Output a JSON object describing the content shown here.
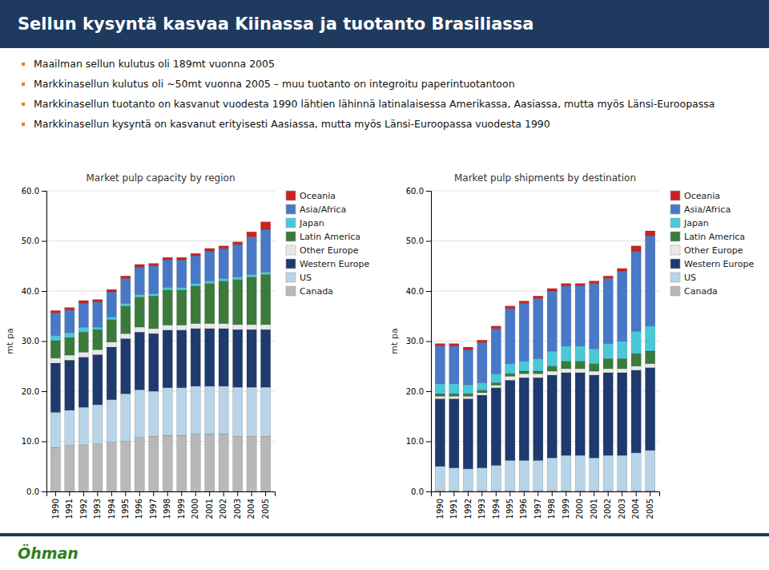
{
  "title": "Sellun kysyntä kasvaa Kiinassa ja tuotanto Brasiliassa",
  "bullets": [
    "Maailman sellun kulutus oli 189mt vuonna 2005",
    "Markkinasellun kulutus oli ~50mt vuonna 2005 – muu tuotanto on integroitu paperintuotantoon",
    "Markkinasellun tuotanto on kasvanut vuodesta 1990 lähtien lähinnä latinalaisessa Amerikassa, Aasiassa, mutta myös Länsi-Euroopassa",
    "Markkinasellun kysyntä on kasvanut erityisesti Aasiassa, mutta myös Länsi-Euroopassa vuodesta 1990"
  ],
  "footer": "Öhman",
  "chart_data": [
    {
      "type": "bar",
      "stacked": true,
      "grid": true,
      "legend": "right",
      "title": "Market pulp capacity by region",
      "y_label": "mt pa",
      "categories": [
        "1990",
        "1991",
        "1992",
        "1993",
        "1994",
        "1995",
        "1996",
        "1997",
        "1998",
        "1999",
        "2000",
        "2001",
        "2002",
        "2003",
        "2004",
        "2005"
      ],
      "ylim": [
        0,
        60
      ],
      "yticks": [
        {
          "value": 0,
          "label": "0.0"
        },
        {
          "value": 10,
          "label": "10.0"
        },
        {
          "value": 20,
          "label": "20.0"
        },
        {
          "value": 30,
          "label": "30.0"
        },
        {
          "value": 40,
          "label": "40.0"
        },
        {
          "value": 50,
          "label": "50.0"
        },
        {
          "value": 60,
          "label": "60.0"
        }
      ],
      "series": [
        {
          "name": "Canada",
          "color": "#b8b8b8",
          "values": [
            8.8,
            9.2,
            9.3,
            9.5,
            9.8,
            10.0,
            10.8,
            11.0,
            11.2,
            11.2,
            11.5,
            11.5,
            11.5,
            11.0,
            11.0,
            11.0
          ]
        },
        {
          "name": "US",
          "color": "#b8d4e8",
          "values": [
            7.0,
            7.0,
            7.5,
            7.8,
            8.5,
            9.5,
            9.5,
            9.0,
            9.5,
            9.5,
            9.5,
            9.5,
            9.5,
            9.8,
            9.8,
            9.8
          ]
        },
        {
          "name": "Western Europe",
          "color": "#1e3a6e",
          "values": [
            9.8,
            10.0,
            10.0,
            10.0,
            10.5,
            11.0,
            11.5,
            11.5,
            11.5,
            11.5,
            11.5,
            11.5,
            11.5,
            11.5,
            11.5,
            11.5
          ]
        },
        {
          "name": "Other Europe",
          "color": "#e8e8e8",
          "values": [
            1.0,
            1.0,
            1.0,
            1.0,
            1.0,
            1.0,
            1.0,
            1.0,
            1.0,
            1.0,
            1.0,
            1.0,
            1.0,
            1.0,
            1.0,
            1.0
          ]
        },
        {
          "name": "Latin America",
          "color": "#3a7a3a",
          "values": [
            3.5,
            3.5,
            4.0,
            4.0,
            4.5,
            5.5,
            6.0,
            6.5,
            7.0,
            7.0,
            7.5,
            8.0,
            8.5,
            9.0,
            9.5,
            10.0
          ]
        },
        {
          "name": "Japan",
          "color": "#48c8d8",
          "values": [
            1.0,
            1.0,
            1.0,
            0.5,
            0.5,
            0.5,
            0.5,
            0.5,
            0.5,
            0.5,
            0.5,
            0.5,
            0.5,
            0.5,
            0.5,
            0.5
          ]
        },
        {
          "name": "Asia/Africa",
          "color": "#4878c8",
          "values": [
            4.5,
            4.5,
            4.8,
            5.0,
            5.0,
            5.0,
            5.5,
            5.5,
            5.5,
            5.5,
            5.5,
            6.0,
            6.0,
            6.5,
            7.5,
            8.5
          ]
        },
        {
          "name": "Oceania",
          "color": "#cc2222",
          "values": [
            0.5,
            0.5,
            0.5,
            0.5,
            0.5,
            0.5,
            0.5,
            0.5,
            0.5,
            0.5,
            0.5,
            0.5,
            0.5,
            0.5,
            1.0,
            1.5
          ]
        }
      ]
    },
    {
      "type": "bar",
      "stacked": true,
      "grid": true,
      "legend": "right",
      "title": "Market pulp shipments by destination",
      "y_label": "mt pa",
      "categories": [
        "1990",
        "1991",
        "1992",
        "1993",
        "1994",
        "1995",
        "1996",
        "1997",
        "1998",
        "1999",
        "2000",
        "2001",
        "2002",
        "2003",
        "2004",
        "2005"
      ],
      "ylim": [
        0,
        60
      ],
      "yticks": [
        {
          "value": 0,
          "label": "0.0"
        },
        {
          "value": 10,
          "label": "10.0"
        },
        {
          "value": 20,
          "label": "20.0"
        },
        {
          "value": 30,
          "label": "30.0"
        },
        {
          "value": 40,
          "label": "40.0"
        },
        {
          "value": 50,
          "label": "50.0"
        },
        {
          "value": 60,
          "label": "60.0"
        }
      ],
      "series": [
        {
          "name": "Canada",
          "color": "#b8b8b8",
          "values": [
            0.2,
            0.2,
            0.2,
            0.2,
            0.2,
            0.2,
            0.2,
            0.2,
            0.2,
            0.2,
            0.2,
            0.2,
            0.2,
            0.2,
            0.2,
            0.2
          ]
        },
        {
          "name": "US",
          "color": "#b8d4e8",
          "values": [
            4.8,
            4.5,
            4.3,
            4.5,
            5.0,
            6.0,
            6.0,
            6.0,
            6.5,
            7.0,
            7.0,
            6.5,
            7.0,
            7.0,
            7.5,
            8.0
          ]
        },
        {
          "name": "Western Europe",
          "color": "#1e3a6e",
          "values": [
            13.5,
            13.8,
            14.0,
            14.5,
            15.5,
            16.0,
            16.5,
            16.5,
            16.5,
            16.5,
            16.5,
            16.5,
            16.5,
            16.5,
            16.5,
            16.5
          ]
        },
        {
          "name": "Other Europe",
          "color": "#e8e8e8",
          "values": [
            0.5,
            0.5,
            0.5,
            0.5,
            0.5,
            0.8,
            0.8,
            0.8,
            0.8,
            0.8,
            0.8,
            0.8,
            0.8,
            0.8,
            0.8,
            0.8
          ]
        },
        {
          "name": "Latin America",
          "color": "#3a7a3a",
          "values": [
            0.5,
            0.5,
            0.5,
            0.5,
            0.5,
            0.5,
            0.5,
            0.5,
            1.0,
            1.5,
            1.5,
            1.5,
            2.0,
            2.0,
            2.5,
            2.5
          ]
        },
        {
          "name": "Japan",
          "color": "#48c8d8",
          "values": [
            2.0,
            2.0,
            1.8,
            1.5,
            1.8,
            2.0,
            2.0,
            2.5,
            3.0,
            3.0,
            3.0,
            3.0,
            3.0,
            3.5,
            4.5,
            5.0
          ]
        },
        {
          "name": "Asia/Africa",
          "color": "#4878c8",
          "values": [
            7.5,
            7.5,
            7.0,
            8.0,
            9.0,
            11.0,
            11.5,
            12.0,
            12.0,
            12.0,
            12.0,
            13.0,
            13.0,
            14.0,
            16.0,
            18.0
          ]
        },
        {
          "name": "Oceania",
          "color": "#cc2222",
          "values": [
            0.5,
            0.5,
            0.5,
            0.5,
            0.5,
            0.5,
            0.5,
            0.5,
            0.5,
            0.5,
            0.5,
            0.5,
            0.5,
            0.5,
            1.0,
            1.0
          ]
        }
      ]
    }
  ]
}
